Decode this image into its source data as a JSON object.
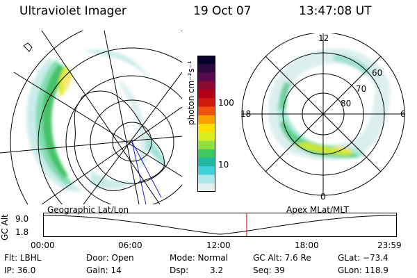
{
  "header": {
    "instrument": "Ultraviolet Imager",
    "date": "19 Oct 07",
    "time": "13:47:08 UT"
  },
  "colorbar": {
    "label": "photon cm⁻²s⁻¹",
    "ticks": [
      "100",
      "10"
    ],
    "colors": [
      "#0a0030",
      "#2a0a40",
      "#5a0a50",
      "#8a0a30",
      "#b00018",
      "#d01a10",
      "#f05010",
      "#f8a000",
      "#ffe000",
      "#d8f020",
      "#90e040",
      "#40c860",
      "#20b8a0",
      "#40d0d8",
      "#a8e8e8",
      "#e0f0f0"
    ]
  },
  "left_map": {
    "caption": "Geographic Lat/Lon"
  },
  "right_map": {
    "caption": "Apex MLat/MLT",
    "mlt_labels": [
      "12",
      "18",
      "6",
      "0"
    ],
    "lat_labels": [
      "60",
      "70",
      "80"
    ]
  },
  "altitude_plot": {
    "ylabel": "GC Alt",
    "y_ticks": [
      "9.0",
      "1.8"
    ],
    "x_ticks": [
      "00:00",
      "06:00",
      "12:00",
      "18:00",
      "23:59"
    ],
    "current_time_marker_hours": 13.79,
    "marker_color": "#d00000"
  },
  "info": {
    "filter": "Flt: LBHL",
    "ip": "IP: 36.0",
    "door": "Door: Open",
    "gain": "Gain: 14",
    "mode": "Mode: Normal",
    "dsp_label": "Dsp:",
    "dsp_value": "3.2",
    "gc_alt": "GC Alt: 7.6 Re",
    "seq": "Seq: 39",
    "glat": "GLat: −73.4",
    "glon": "GLon: 118.9"
  }
}
